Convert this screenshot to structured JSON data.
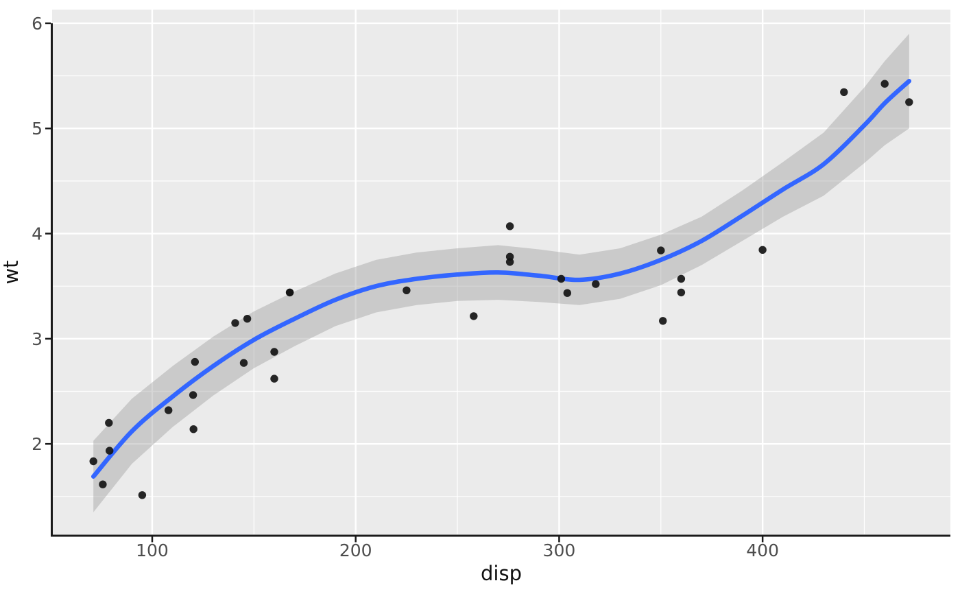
{
  "figure": {
    "background": "#FFFFFF"
  },
  "chart_data": {
    "type": "scatter",
    "subtype": "scatter-with-loess-smooth-and-confidence-band",
    "title": "",
    "xlabel": "disp",
    "ylabel": "wt",
    "xlim": [
      50.8,
      492.3
    ],
    "ylim": [
      1.14,
      6.13
    ],
    "x_major_ticks": [
      100,
      200,
      300,
      400
    ],
    "x_minor_ticks": [
      150,
      250,
      350,
      450
    ],
    "y_major_ticks": [
      2,
      3,
      4,
      5,
      6
    ],
    "y_minor_ticks": [
      1.5,
      2.5,
      3.5,
      4.5,
      5.5
    ],
    "grid": true,
    "legend_position": "none",
    "points": [
      [
        160,
        2.62
      ],
      [
        160,
        2.875
      ],
      [
        108,
        2.32
      ],
      [
        258,
        3.215
      ],
      [
        360,
        3.44
      ],
      [
        225,
        3.46
      ],
      [
        360,
        3.57
      ],
      [
        146.7,
        3.19
      ],
      [
        140.8,
        3.15
      ],
      [
        167.6,
        3.44
      ],
      [
        167.6,
        3.44
      ],
      [
        275.8,
        4.07
      ],
      [
        275.8,
        3.73
      ],
      [
        275.8,
        3.78
      ],
      [
        472,
        5.25
      ],
      [
        460,
        5.424
      ],
      [
        440,
        5.345
      ],
      [
        78.7,
        2.2
      ],
      [
        75.7,
        1.615
      ],
      [
        71.1,
        1.835
      ],
      [
        120.1,
        2.465
      ],
      [
        318,
        3.52
      ],
      [
        304,
        3.435
      ],
      [
        350,
        3.84
      ],
      [
        400,
        3.845
      ],
      [
        79,
        1.935
      ],
      [
        120.3,
        2.14
      ],
      [
        95.1,
        1.513
      ],
      [
        351,
        3.17
      ],
      [
        145,
        2.77
      ],
      [
        301,
        3.57
      ],
      [
        121,
        2.78
      ]
    ],
    "smooth": {
      "method": "loess",
      "x": [
        71.1,
        90,
        110,
        130,
        150,
        170,
        190,
        210,
        230,
        250,
        270,
        290,
        310,
        330,
        350,
        370,
        390,
        410,
        430,
        450,
        460,
        472
      ],
      "fit": [
        1.69,
        2.12,
        2.45,
        2.74,
        2.99,
        3.19,
        3.37,
        3.5,
        3.57,
        3.61,
        3.63,
        3.6,
        3.56,
        3.62,
        3.75,
        3.93,
        4.17,
        4.42,
        4.66,
        5.03,
        5.24,
        5.45
      ],
      "ci_half_width": [
        0.34,
        0.31,
        0.29,
        0.28,
        0.27,
        0.26,
        0.25,
        0.25,
        0.25,
        0.25,
        0.26,
        0.25,
        0.24,
        0.24,
        0.24,
        0.23,
        0.24,
        0.26,
        0.3,
        0.36,
        0.4,
        0.45
      ]
    },
    "colors": {
      "point": "#141414",
      "smooth_line": "#3366FF",
      "ci_band": "rgba(153,153,153,0.40)",
      "panel_background": "#EBEBEB",
      "gridline_major": "#FFFFFF",
      "gridline_minor": "#FFFFFF",
      "axis_line": "#1A1A1A",
      "tick_mark": "#1A1A1A",
      "tick_label": "#4D4D4D",
      "axis_title": "#111111"
    }
  }
}
